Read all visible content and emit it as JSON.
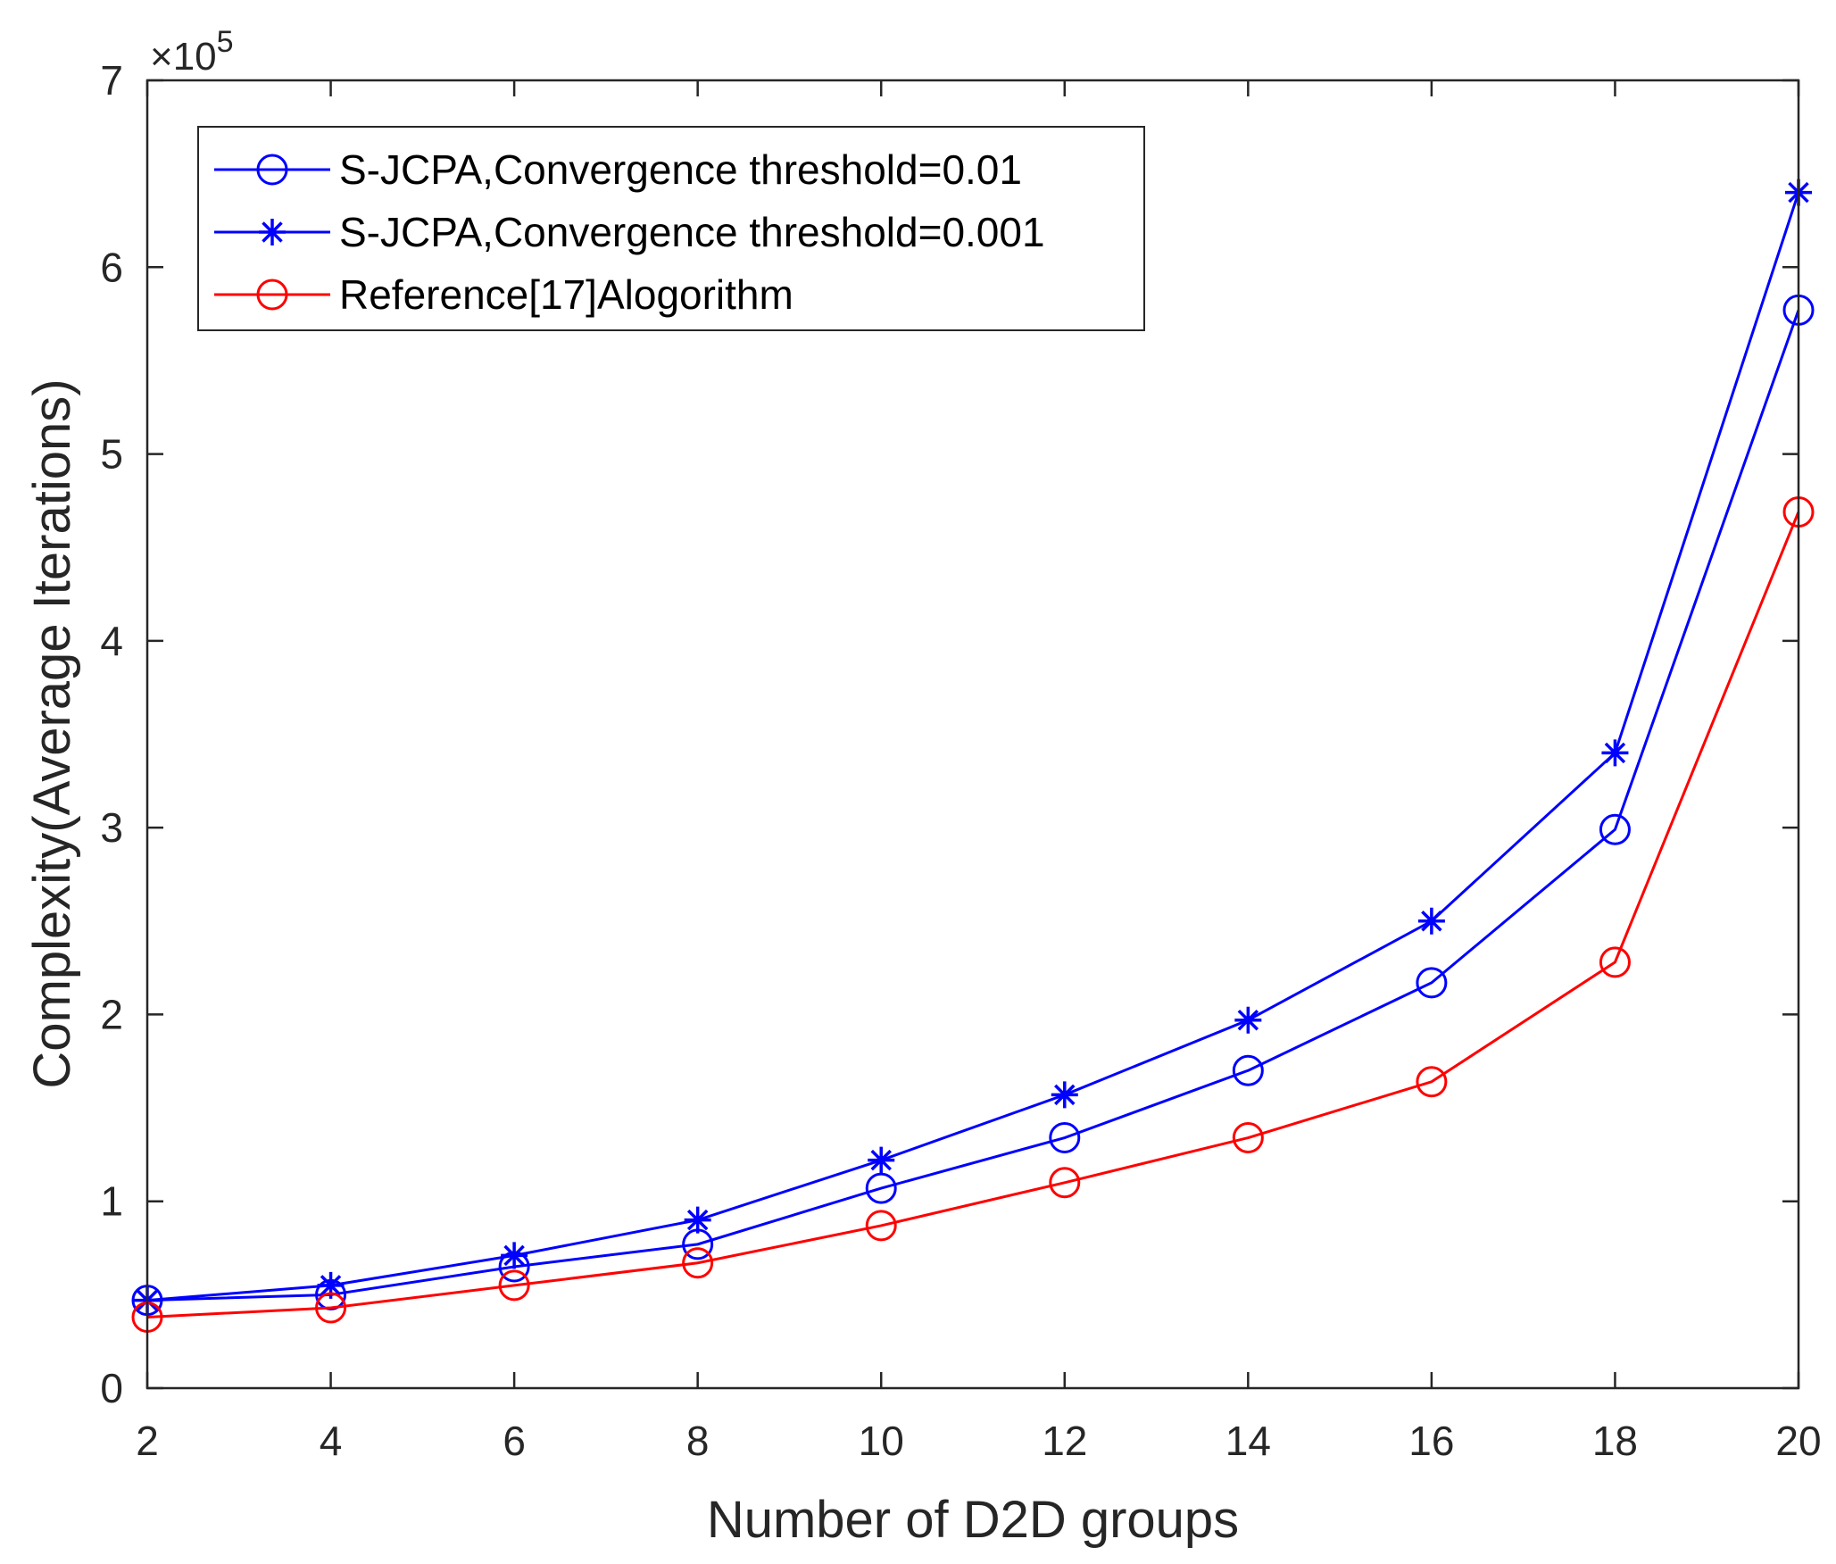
{
  "chart_data": {
    "type": "line",
    "xlabel": "Number of D2D groups",
    "ylabel": "Complexity(Average Iterations)",
    "x": [
      2,
      4,
      6,
      8,
      10,
      12,
      14,
      16,
      18,
      20
    ],
    "xlim": [
      2,
      20
    ],
    "ylim": [
      0,
      7
    ],
    "xticks": [
      "2",
      "4",
      "6",
      "8",
      "10",
      "12",
      "14",
      "16",
      "18",
      "20"
    ],
    "yticks": [
      "0",
      "1",
      "2",
      "3",
      "4",
      "5",
      "6",
      "7"
    ],
    "y_exponent": {
      "base": "×10",
      "power": "5"
    },
    "grid": false,
    "legend_position": "top-left",
    "series": [
      {
        "name": "S-JCPA,Convergence threshold=0.01",
        "color": "#0000ff",
        "marker": "circle",
        "values": [
          0.47,
          0.5,
          0.65,
          0.77,
          1.07,
          1.34,
          1.7,
          2.17,
          2.99,
          5.77
        ]
      },
      {
        "name": "S-JCPA,Convergence threshold=0.001",
        "color": "#0000ff",
        "marker": "asterisk",
        "values": [
          0.47,
          0.55,
          0.71,
          0.9,
          1.22,
          1.57,
          1.97,
          2.5,
          3.4,
          6.4
        ]
      },
      {
        "name": "Reference[17]Alogorithm",
        "color": "#ff0000",
        "marker": "circle",
        "values": [
          0.38,
          0.43,
          0.55,
          0.67,
          0.87,
          1.1,
          1.34,
          1.64,
          2.28,
          4.69
        ]
      }
    ]
  }
}
